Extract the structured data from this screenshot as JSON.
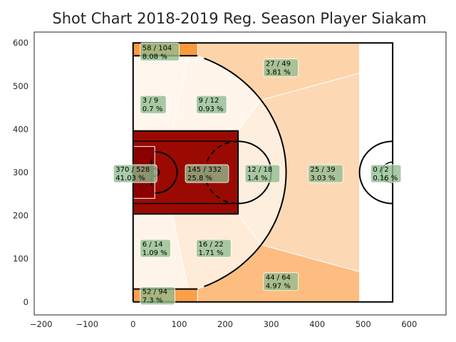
{
  "chart_data": {
    "type": "heatmap",
    "title": "Shot Chart 2018-2019 Reg. Season Player Siakam",
    "xlabel": "",
    "ylabel": "",
    "xlim": [
      -215,
      680
    ],
    "ylim": [
      -30,
      625
    ],
    "xticks": [
      -200,
      -100,
      0,
      100,
      200,
      300,
      400,
      500,
      600
    ],
    "yticks": [
      0,
      100,
      200,
      300,
      400,
      500,
      600
    ],
    "grid": false,
    "zones": [
      {
        "id": "corner-three-top",
        "made": 58,
        "attempts": 104,
        "label": "58 / 104",
        "pct": "8.08 %",
        "lx": 20,
        "ly": 580,
        "color": "#f99a3c"
      },
      {
        "id": "above-break-three-top",
        "made": 27,
        "attempts": 49,
        "label": "27 / 49",
        "pct": "3.81 %",
        "lx": 288,
        "ly": 543,
        "color": "#fdd4aa"
      },
      {
        "id": "mid-baseline-top",
        "made": 3,
        "attempts": 9,
        "label": "3 / 9",
        "pct": "0.7 %",
        "lx": 20,
        "ly": 458,
        "color": "#fff6ee"
      },
      {
        "id": "mid-wing-top",
        "made": 9,
        "attempts": 12,
        "label": "9 / 12",
        "pct": "0.93 %",
        "lx": 142,
        "ly": 458,
        "color": "#fff5eb"
      },
      {
        "id": "restricted-area",
        "made": 370,
        "attempts": 528,
        "label": "370 / 528",
        "pct": "41.03 %",
        "lx": -38,
        "ly": 298,
        "color": "#8b0000"
      },
      {
        "id": "paint-non-ra",
        "made": 145,
        "attempts": 332,
        "label": "145 / 332",
        "pct": "25.8 %",
        "lx": 118,
        "ly": 298,
        "color": "#9a0a02"
      },
      {
        "id": "mid-center",
        "made": 12,
        "attempts": 18,
        "label": "12 / 18",
        "pct": "1.4 %",
        "lx": 248,
        "ly": 298,
        "color": "#fdeede"
      },
      {
        "id": "above-break-three-center",
        "made": 25,
        "attempts": 39,
        "label": "25 / 39",
        "pct": "3.03 %",
        "lx": 385,
        "ly": 298,
        "color": "#fdd8b4"
      },
      {
        "id": "backcourt",
        "made": 0,
        "attempts": 2,
        "label": "0 / 2",
        "pct": "0.16 %",
        "lx": 521,
        "ly": 298,
        "color": "#ffffff"
      },
      {
        "id": "mid-baseline-bottom",
        "made": 6,
        "attempts": 14,
        "label": "6 / 14",
        "pct": "1.09 %",
        "lx": 20,
        "ly": 125,
        "color": "#fff4e9"
      },
      {
        "id": "mid-wing-bottom",
        "made": 16,
        "attempts": 22,
        "label": "16 / 22",
        "pct": "1.71 %",
        "lx": 142,
        "ly": 125,
        "color": "#feebd8"
      },
      {
        "id": "above-break-three-bottom",
        "made": 44,
        "attempts": 64,
        "label": "44 / 64",
        "pct": "4.97 %",
        "lx": 288,
        "ly": 48,
        "color": "#fdbd80"
      },
      {
        "id": "corner-three-bottom",
        "made": 52,
        "attempts": 94,
        "label": "52 / 94",
        "pct": "7.3 %",
        "lx": 20,
        "ly": 15,
        "color": "#fba04a"
      }
    ],
    "court": {
      "length": 564,
      "width": 600,
      "hoop": [
        47.5,
        300
      ],
      "paint": {
        "x0": 0,
        "x1": 228,
        "y0": 204,
        "y1": 396
      },
      "paint_inner": {
        "y0": 228,
        "y1": 372
      },
      "three_radius": 285,
      "corner_three_y": [
        30,
        570
      ],
      "corner_three_x_end": 140,
      "backcourt_circle_radius": 72,
      "zone_boundary_x": 492
    },
    "colors": {
      "line": "#000000",
      "label_box": "#8fbc8f",
      "zone_divider": "#ffffff",
      "axis": "#262626"
    }
  }
}
